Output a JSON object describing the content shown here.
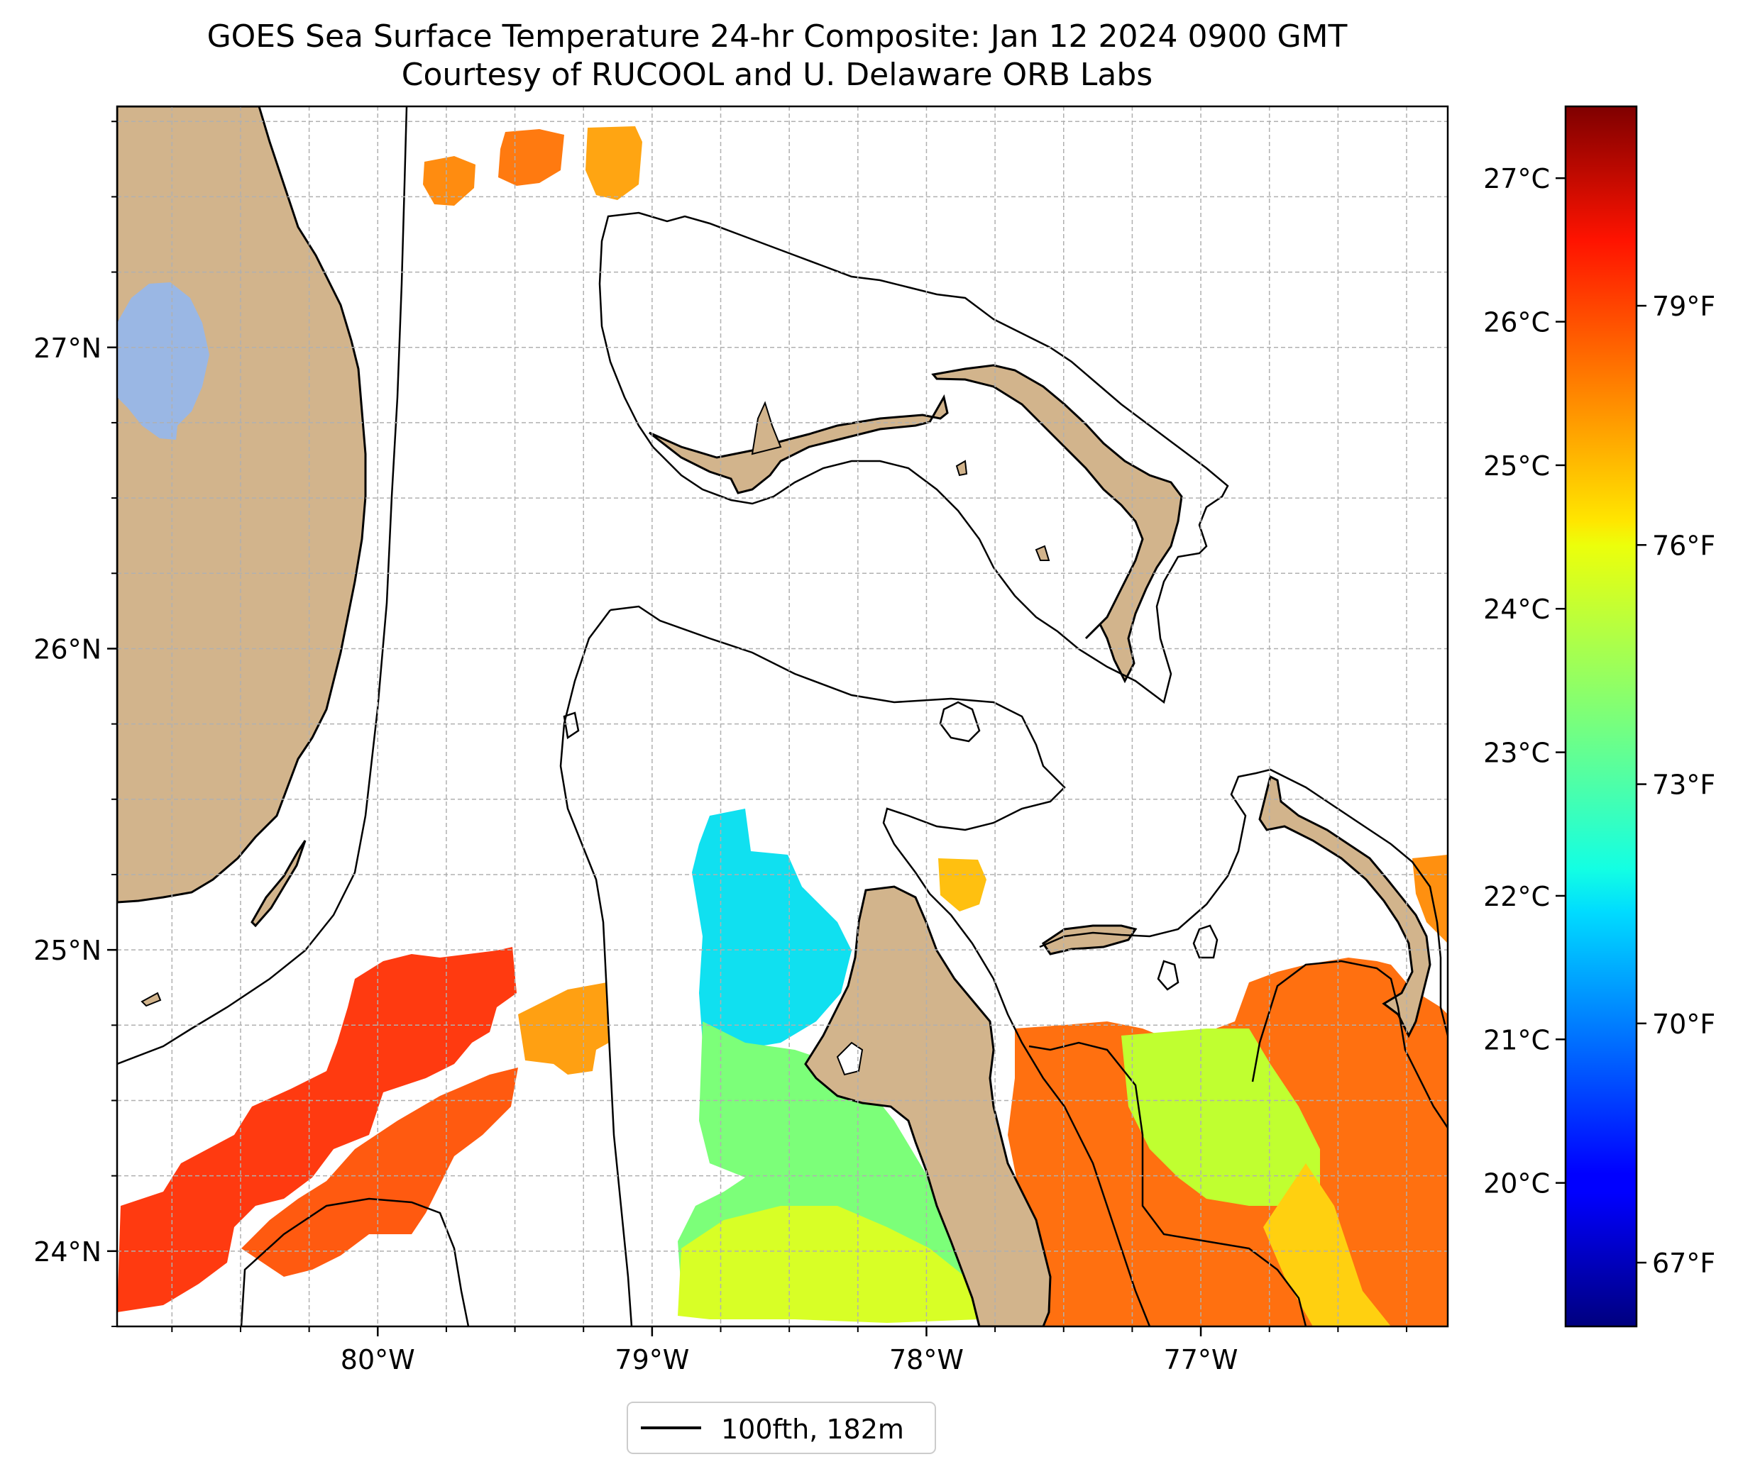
{
  "title": {
    "line1": "GOES Sea Surface Temperature 24-hr Composite: Jan 12 2024 0900 GMT",
    "line2": "Courtesy of RUCOOL and U. Delaware ORB Labs"
  },
  "chart_data": {
    "type": "heatmap",
    "map_extent": {
      "lon": [
        -80.95,
        -76.1
      ],
      "lat": [
        23.75,
        27.8
      ]
    },
    "lon_ticks": [
      {
        "value": -80,
        "label": "80°W"
      },
      {
        "value": -79,
        "label": "79°W"
      },
      {
        "value": -78,
        "label": "78°W"
      },
      {
        "value": -77,
        "label": "77°W"
      }
    ],
    "lat_ticks": [
      {
        "value": 27,
        "label": "27°N"
      },
      {
        "value": 26,
        "label": "26°N"
      },
      {
        "value": 25,
        "label": "25°N"
      },
      {
        "value": 24,
        "label": "24°N"
      }
    ],
    "grid": true,
    "colorbar": {
      "colormap": "jet",
      "range_c": [
        19.0,
        27.5
      ],
      "celsius_ticks": [
        {
          "value": 20,
          "label": "20°C"
        },
        {
          "value": 21,
          "label": "21°C"
        },
        {
          "value": 22,
          "label": "22°C"
        },
        {
          "value": 23,
          "label": "23°C"
        },
        {
          "value": 24,
          "label": "24°C"
        },
        {
          "value": 25,
          "label": "25°C"
        },
        {
          "value": 26,
          "label": "26°C"
        },
        {
          "value": 27,
          "label": "27°C"
        }
      ],
      "fahrenheit_ticks": [
        {
          "value": 67,
          "label": "67°F"
        },
        {
          "value": 70,
          "label": "70°F"
        },
        {
          "value": 73,
          "label": "73°F"
        },
        {
          "value": 76,
          "label": "76°F"
        },
        {
          "value": 79,
          "label": "79°F"
        }
      ]
    },
    "legend": {
      "label": "100fth, 182m",
      "placement": "bottom-center"
    },
    "colors": {
      "land": "#d2b48c",
      "lake": "#9ab7e4",
      "isobath": "#000000"
    }
  }
}
